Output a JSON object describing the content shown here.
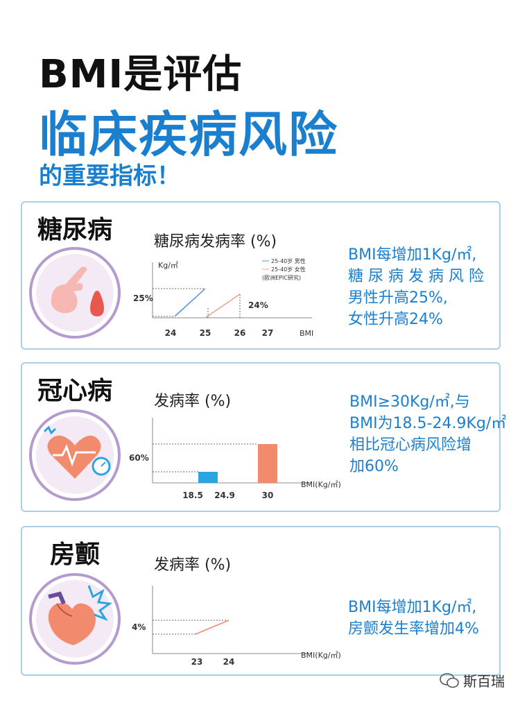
{
  "header": {
    "line1": "BMI是评估",
    "line2": "临床疾病风险",
    "line3": "的重要指标！"
  },
  "cards": [
    {
      "title": "糖尿病",
      "icon": "finger-blood-drop-icon",
      "chart_title": "糖尿病发病率 (%)",
      "desc": [
        "BMI每增加1Kg/㎡,",
        "糖 尿 病 发 病 风 险",
        "男性升高25%,",
        "女性升高24%"
      ]
    },
    {
      "title": "冠心病",
      "icon": "heart-monitor-icon",
      "chart_title": "发病率 (%)",
      "desc": [
        "BMI≥30Kg/㎡,与",
        "BMI为18.5-24.9Kg/㎡",
        "相比冠心病风险增",
        "加60%"
      ]
    },
    {
      "title": "房颤",
      "icon": "heart-shock-icon",
      "chart_title": "发病率 (%)",
      "desc": [
        "BMI每增加1Kg/㎡,",
        "房颤发生率增加4%"
      ]
    }
  ],
  "chart_data": [
    {
      "type": "line",
      "ylabel": "Kg/㎡",
      "xlabel": "BMI",
      "x_ticks": [
        "24",
        "25",
        "26",
        "27"
      ],
      "legend": [
        "25-40岁 男性",
        "25-40岁 女性",
        "(欧洲EPIC研究)"
      ],
      "series": [
        {
          "name": "25-40岁 男性",
          "x": [
            24,
            25
          ],
          "color": "#4a90d9"
        },
        {
          "name": "25-40岁 女性",
          "x": [
            25,
            26
          ],
          "color": "#f4a08a"
        }
      ],
      "annotations": [
        "25%",
        "24%"
      ]
    },
    {
      "type": "bar",
      "xlabel": "BMI(Kg/㎡)",
      "x_ticks": [
        "18.5",
        "24.9",
        "30"
      ],
      "bars": [
        {
          "range": [
            "18.5",
            "24.9"
          ],
          "color": "#2aa5e0",
          "level": 0.28
        },
        {
          "range": [
            "30"
          ],
          "color": "#f28a6e",
          "level": 0.98
        }
      ],
      "annotations": [
        "60%"
      ]
    },
    {
      "type": "line",
      "xlabel": "BMI(Kg/㎡)",
      "x_ticks": [
        "23",
        "24"
      ],
      "series": [
        {
          "x": [
            23,
            24
          ],
          "color": "#f28a6e"
        }
      ],
      "annotations": [
        "4%"
      ]
    }
  ],
  "watermark": "斯百瑞"
}
